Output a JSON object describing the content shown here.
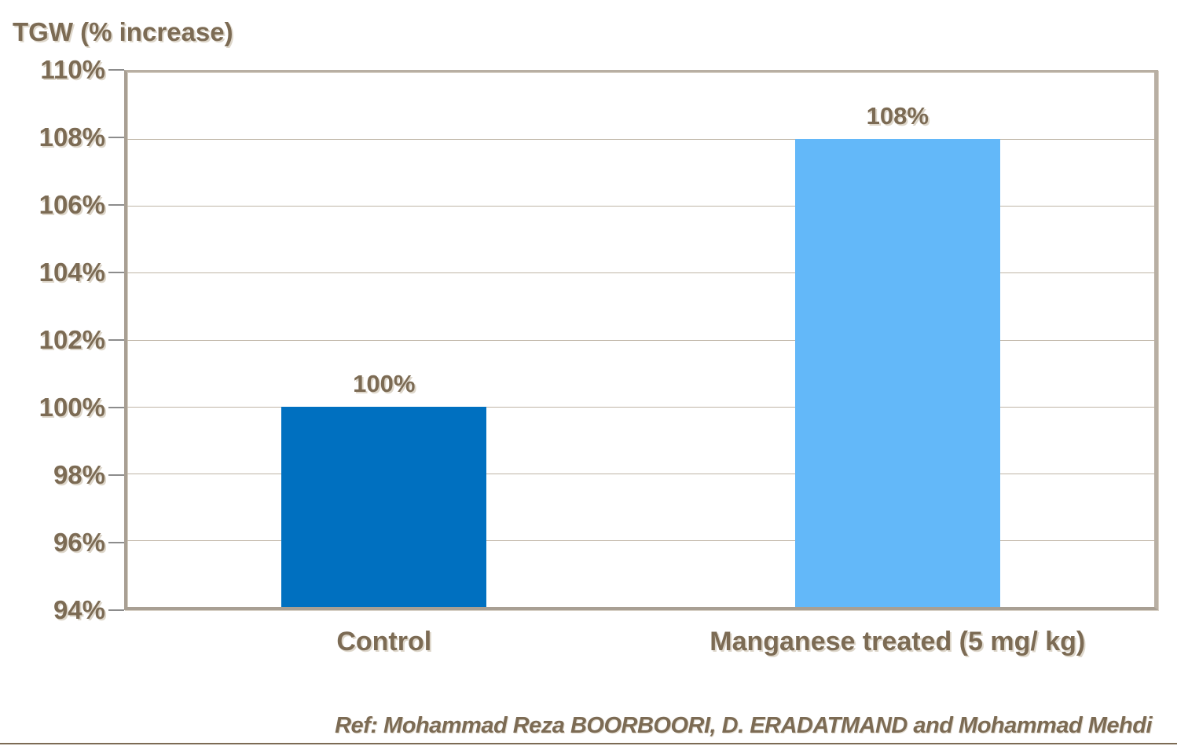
{
  "chart_data": {
    "type": "bar",
    "title": "TGW (% increase)",
    "categories": [
      "Control",
      "Manganese treated (5 mg/ kg)"
    ],
    "values": [
      100,
      108
    ],
    "value_labels": [
      "100%",
      "108%"
    ],
    "ylim": [
      94,
      110
    ],
    "ytick_step": 2,
    "ytick_labels_top_to_bottom": [
      "110%",
      "108%",
      "106%",
      "104%",
      "102%",
      "100%",
      "98%",
      "96%",
      "94%"
    ],
    "grid": true,
    "legend": "none",
    "bar_colors": [
      "#0070C0",
      "#63B8F9"
    ],
    "text_color": "#7C6B54",
    "gridline_color": "#BFB5A6",
    "plot_border_color": "#B3A99C",
    "tick_color": "#8C8C8C"
  },
  "footer": {
    "reference": "Ref: Mohammad Reza BOORBOORI, D. ERADATMAND and Mohammad Mehdi"
  }
}
